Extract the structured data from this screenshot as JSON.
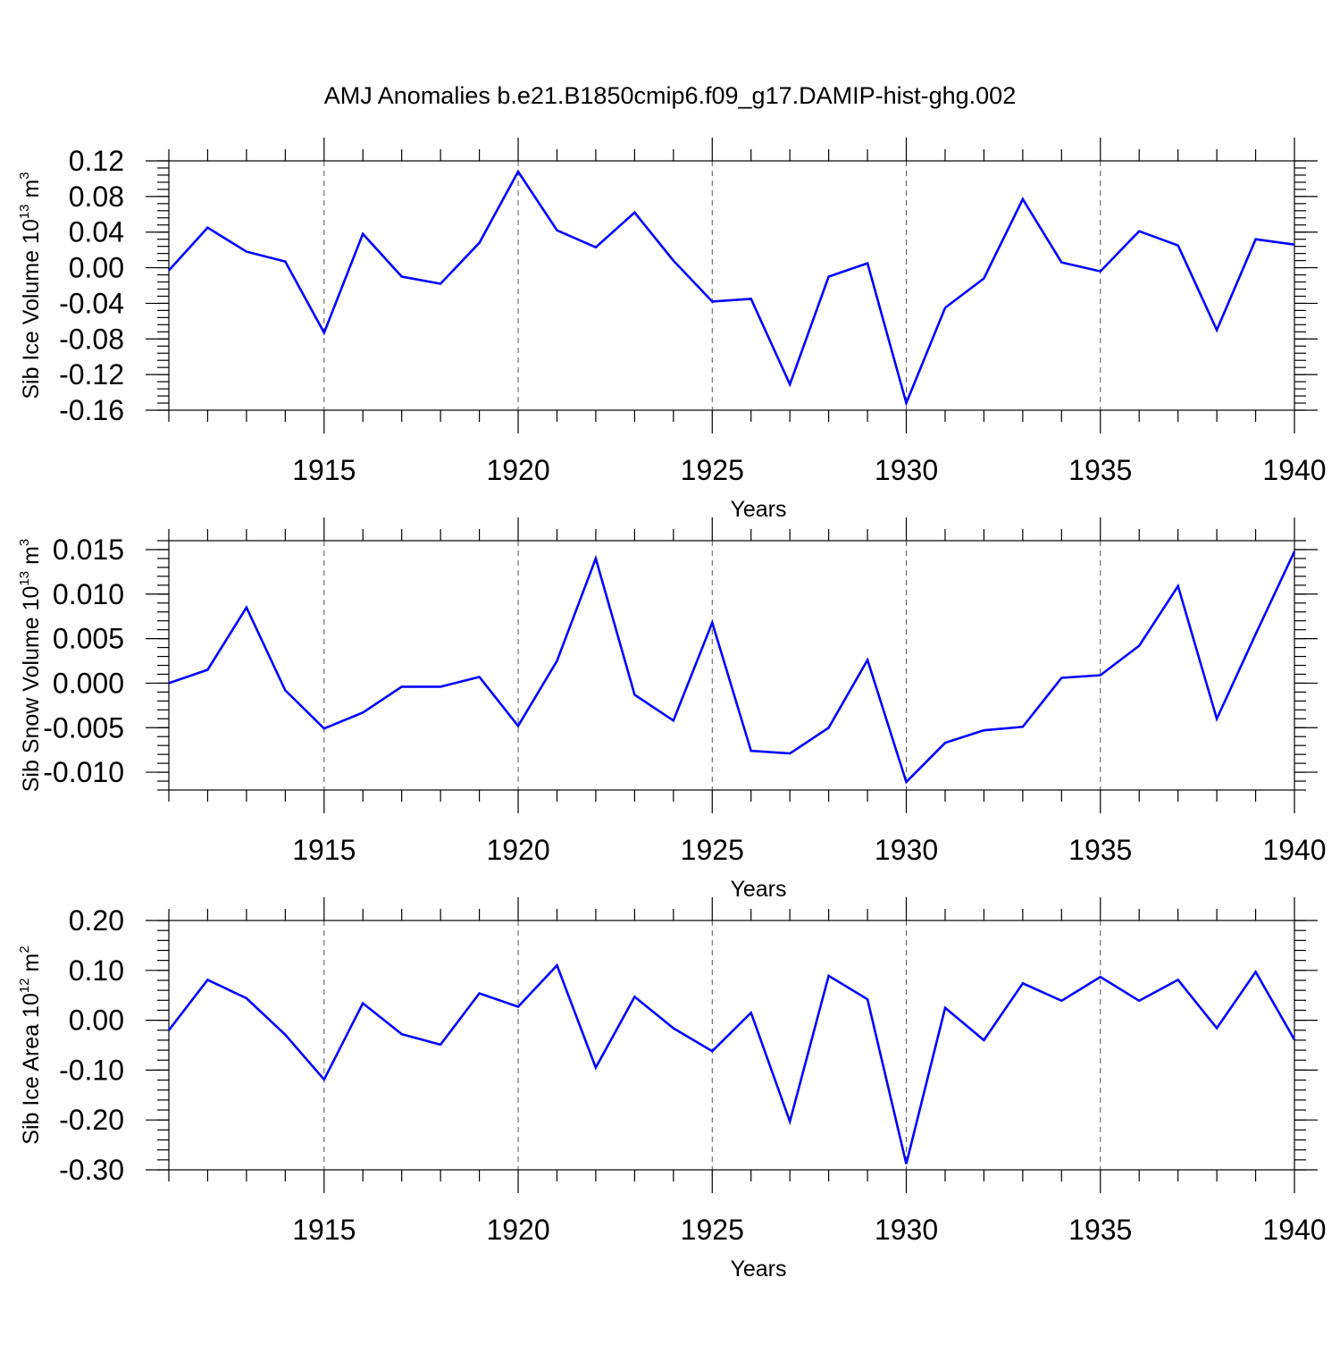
{
  "title": "AMJ Anomalies b.e21.B1850cmip6.f09_g17.DAMIP-hist-ghg.002",
  "colors": {
    "series": "#0000ff",
    "axis": "#000000",
    "grid": "#555555"
  },
  "chart_data": [
    {
      "type": "line",
      "title": "AMJ Anomalies b.e21.B1850cmip6.f09_g17.DAMIP-hist-ghg.002",
      "xlabel": "Years",
      "ylabel": "Sib Ice Volume 10",
      "ylabel_exp": "13",
      "ylabel_unit": " m",
      "ylabel_unit_exp": "3",
      "xlim": [
        1911,
        1940
      ],
      "ylim": [
        -0.16,
        0.12
      ],
      "x_ticks": [
        1915,
        1920,
        1925,
        1930,
        1935,
        1940
      ],
      "x_tick_labels": [
        "1915",
        "1920",
        "1925",
        "1930",
        "1935",
        "1940"
      ],
      "y_ticks": [
        0.12,
        0.08,
        0.04,
        0.0,
        -0.04,
        -0.08,
        -0.12,
        -0.16
      ],
      "y_tick_labels": [
        "0.12",
        "0.08",
        "0.04",
        "0.00",
        "-0.04",
        "-0.08",
        "-0.12",
        "-0.16"
      ],
      "y_minor_step": 0.008,
      "gridlines_x": [
        1915,
        1920,
        1925,
        1930,
        1935
      ],
      "x": [
        1911,
        1912,
        1913,
        1914,
        1915,
        1916,
        1917,
        1918,
        1919,
        1920,
        1921,
        1922,
        1923,
        1924,
        1925,
        1926,
        1927,
        1928,
        1929,
        1930,
        1931,
        1932,
        1933,
        1934,
        1935,
        1936,
        1937,
        1938,
        1939,
        1940
      ],
      "values": [
        -0.003,
        0.045,
        0.018,
        0.007,
        -0.073,
        0.038,
        -0.01,
        -0.018,
        0.028,
        0.108,
        0.042,
        0.023,
        0.062,
        0.008,
        -0.038,
        -0.035,
        -0.131,
        -0.01,
        0.005,
        -0.152,
        -0.045,
        -0.012,
        0.077,
        0.006,
        -0.004,
        0.041,
        0.025,
        -0.07,
        0.032,
        0.026
      ]
    },
    {
      "type": "line",
      "xlabel": "Years",
      "ylabel": "Sib Snow Volume 10",
      "ylabel_exp": "13",
      "ylabel_unit": " m",
      "ylabel_unit_exp": "3",
      "xlim": [
        1911,
        1940
      ],
      "ylim": [
        -0.012,
        0.016
      ],
      "x_ticks": [
        1915,
        1920,
        1925,
        1930,
        1935,
        1940
      ],
      "x_tick_labels": [
        "1915",
        "1920",
        "1925",
        "1930",
        "1935",
        "1940"
      ],
      "y_ticks": [
        0.015,
        0.01,
        0.005,
        0.0,
        -0.005,
        -0.01
      ],
      "y_tick_labels": [
        "0.015",
        "0.010",
        "0.005",
        "0.000",
        "-0.005",
        "-0.010"
      ],
      "y_minor_step": 0.001,
      "gridlines_x": [
        1915,
        1920,
        1925,
        1930,
        1935
      ],
      "x": [
        1911,
        1912,
        1913,
        1914,
        1915,
        1916,
        1917,
        1918,
        1919,
        1920,
        1921,
        1922,
        1923,
        1924,
        1925,
        1926,
        1927,
        1928,
        1929,
        1930,
        1931,
        1932,
        1933,
        1934,
        1935,
        1936,
        1937,
        1938,
        1939,
        1940
      ],
      "values": [
        0.0,
        0.0015,
        0.0085,
        -0.0008,
        -0.0051,
        -0.0033,
        -0.0004,
        -0.0004,
        0.0007,
        -0.0048,
        0.0025,
        0.014,
        -0.0013,
        -0.0042,
        0.0068,
        -0.0076,
        -0.0079,
        -0.005,
        0.0026,
        -0.0111,
        -0.0067,
        -0.0053,
        -0.0049,
        0.0006,
        0.0009,
        0.0042,
        0.0109,
        -0.004,
        0.0055,
        0.0148
      ]
    },
    {
      "type": "line",
      "xlabel": "Years",
      "ylabel": "Sib Ice Area 10",
      "ylabel_exp": "12",
      "ylabel_unit": " m",
      "ylabel_unit_exp": "2",
      "xlim": [
        1911,
        1940
      ],
      "ylim": [
        -0.3,
        0.2
      ],
      "x_ticks": [
        1915,
        1920,
        1925,
        1930,
        1935,
        1940
      ],
      "x_tick_labels": [
        "1915",
        "1920",
        "1925",
        "1930",
        "1935",
        "1940"
      ],
      "y_ticks": [
        0.2,
        0.1,
        0.0,
        -0.1,
        -0.2,
        -0.3
      ],
      "y_tick_labels": [
        "0.20",
        "0.10",
        "0.00",
        "-0.10",
        "-0.20",
        "-0.30"
      ],
      "y_minor_step": 0.02,
      "gridlines_x": [
        1915,
        1920,
        1925,
        1930,
        1935
      ],
      "x": [
        1911,
        1912,
        1913,
        1914,
        1915,
        1916,
        1917,
        1918,
        1919,
        1920,
        1921,
        1922,
        1923,
        1924,
        1925,
        1926,
        1927,
        1928,
        1929,
        1930,
        1931,
        1932,
        1933,
        1934,
        1935,
        1936,
        1937,
        1938,
        1939,
        1940
      ],
      "values": [
        -0.02,
        0.081,
        0.044,
        -0.029,
        -0.119,
        0.034,
        -0.028,
        -0.049,
        0.054,
        0.027,
        0.11,
        -0.095,
        0.047,
        -0.016,
        -0.062,
        0.015,
        -0.203,
        0.089,
        0.042,
        -0.288,
        0.025,
        -0.04,
        0.074,
        0.039,
        0.087,
        0.039,
        0.081,
        -0.016,
        0.097,
        -0.039
      ]
    }
  ]
}
